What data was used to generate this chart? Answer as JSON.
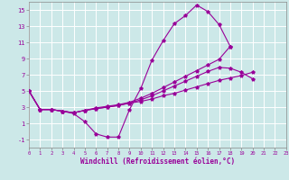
{
  "background_color": "#cce8e8",
  "grid_color": "#ffffff",
  "line_color": "#990099",
  "xlabel": "Windchill (Refroidissement éolien,°C)",
  "xlim": [
    0,
    23
  ],
  "ylim": [
    -2,
    16
  ],
  "yticks": [
    -1,
    1,
    3,
    5,
    7,
    9,
    11,
    13,
    15
  ],
  "xticks": [
    0,
    1,
    2,
    3,
    4,
    5,
    6,
    7,
    8,
    9,
    10,
    11,
    12,
    13,
    14,
    15,
    16,
    17,
    18,
    19,
    20,
    21,
    22,
    23
  ],
  "series": [
    {
      "x": [
        0,
        1,
        2,
        3,
        4,
        5,
        6,
        7,
        8,
        9,
        10,
        11,
        12,
        13,
        14,
        15,
        16,
        17,
        18,
        19,
        20,
        21,
        22,
        23
      ],
      "y": [
        5,
        2.7,
        2.7,
        2.5,
        2.2,
        1.2,
        -0.3,
        -0.7,
        -0.7,
        2.7,
        5.3,
        8.8,
        11.2,
        13.3,
        14.3,
        15.6,
        14.8,
        13.2,
        10.5,
        null,
        null,
        null,
        null,
        null
      ]
    },
    {
      "x": [
        0,
        1,
        2,
        3,
        4,
        5,
        6,
        7,
        8,
        9,
        10,
        11,
        12,
        13,
        14,
        15,
        16,
        17,
        18,
        19,
        20,
        21,
        22,
        23
      ],
      "y": [
        5,
        2.7,
        2.7,
        2.5,
        2.3,
        2.6,
        2.9,
        3.1,
        3.3,
        3.6,
        4.1,
        4.7,
        5.4,
        6.1,
        6.8,
        7.5,
        8.2,
        8.9,
        10.5,
        null,
        null,
        null,
        null,
        null
      ]
    },
    {
      "x": [
        0,
        1,
        2,
        3,
        4,
        5,
        6,
        7,
        8,
        9,
        10,
        11,
        12,
        13,
        14,
        15,
        16,
        17,
        18,
        19,
        20,
        21,
        22,
        23
      ],
      "y": [
        5,
        2.7,
        2.7,
        2.5,
        2.3,
        2.6,
        2.8,
        3.0,
        3.2,
        3.5,
        3.9,
        4.4,
        5.0,
        5.6,
        6.2,
        6.8,
        7.4,
        7.9,
        7.8,
        7.3,
        6.5,
        null,
        null,
        null
      ]
    },
    {
      "x": [
        0,
        1,
        2,
        3,
        4,
        5,
        6,
        7,
        8,
        9,
        10,
        11,
        12,
        13,
        14,
        15,
        16,
        17,
        18,
        19,
        20,
        21,
        22,
        23
      ],
      "y": [
        5,
        2.7,
        2.7,
        2.5,
        2.3,
        2.6,
        2.8,
        3.0,
        3.2,
        3.5,
        3.7,
        4.0,
        4.4,
        4.7,
        5.1,
        5.5,
        5.9,
        6.3,
        6.6,
        6.9,
        7.3,
        null,
        null,
        null
      ]
    }
  ]
}
